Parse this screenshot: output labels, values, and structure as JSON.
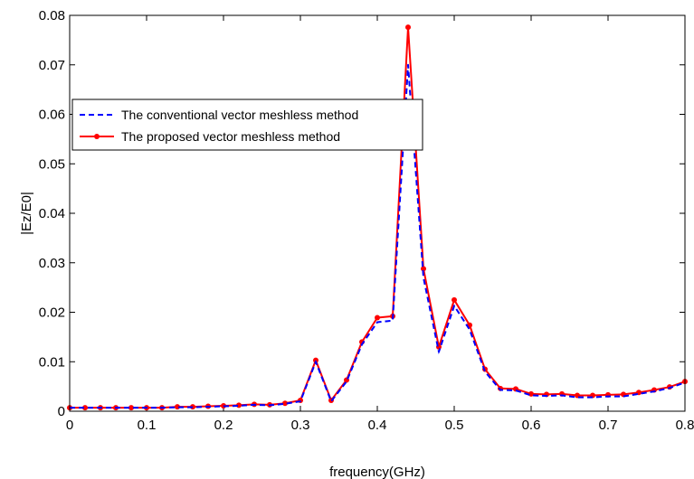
{
  "chart_data": {
    "type": "line",
    "title": "",
    "xlabel": "frequency(GHz)",
    "ylabel": "|Ez/E0|",
    "xlim": [
      0,
      0.8
    ],
    "ylim": [
      0,
      0.08
    ],
    "x_ticks": [
      "0",
      "0.1",
      "0.2",
      "0.3",
      "0.4",
      "0.5",
      "0.6",
      "0.7",
      "0.8"
    ],
    "y_ticks": [
      "0",
      "0.01",
      "0.02",
      "0.03",
      "0.04",
      "0.05",
      "0.06",
      "0.07",
      "0.08"
    ],
    "grid": false,
    "legend_position": "upper-left",
    "x": [
      0,
      0.02,
      0.04,
      0.06,
      0.08,
      0.1,
      0.12,
      0.14,
      0.16,
      0.18,
      0.2,
      0.22,
      0.24,
      0.26,
      0.28,
      0.3,
      0.32,
      0.34,
      0.36,
      0.38,
      0.4,
      0.42,
      0.44,
      0.46,
      0.48,
      0.5,
      0.52,
      0.54,
      0.56,
      0.58,
      0.6,
      0.62,
      0.64,
      0.66,
      0.68,
      0.7,
      0.72,
      0.74,
      0.76,
      0.78,
      0.8
    ],
    "series": [
      {
        "name": "The conventional vector meshless method",
        "color": "#0000ff",
        "style": "dashed",
        "values": [
          0.0007,
          0.0007,
          0.0007,
          0.0007,
          0.0007,
          0.0007,
          0.0007,
          0.0008,
          0.0008,
          0.0009,
          0.001,
          0.0011,
          0.0013,
          0.0012,
          0.0015,
          0.002,
          0.01,
          0.002,
          0.006,
          0.0135,
          0.018,
          0.0183,
          0.07,
          0.027,
          0.012,
          0.0213,
          0.0165,
          0.008,
          0.0043,
          0.0042,
          0.0032,
          0.0031,
          0.0032,
          0.0028,
          0.0028,
          0.003,
          0.003,
          0.0035,
          0.004,
          0.0047,
          0.0058
        ]
      },
      {
        "name": "The proposed vector meshless method",
        "color": "#ff0000",
        "style": "solid-marker",
        "values": [
          0.0007,
          0.0007,
          0.0007,
          0.0007,
          0.0007,
          0.0007,
          0.0007,
          0.0009,
          0.0009,
          0.001,
          0.0011,
          0.0012,
          0.0014,
          0.0013,
          0.0016,
          0.0022,
          0.0103,
          0.0022,
          0.0063,
          0.014,
          0.0189,
          0.0192,
          0.0776,
          0.0288,
          0.013,
          0.0225,
          0.0174,
          0.0085,
          0.0046,
          0.0045,
          0.0035,
          0.0034,
          0.0035,
          0.0032,
          0.0032,
          0.0033,
          0.0034,
          0.0038,
          0.0043,
          0.0049,
          0.006
        ]
      }
    ]
  }
}
